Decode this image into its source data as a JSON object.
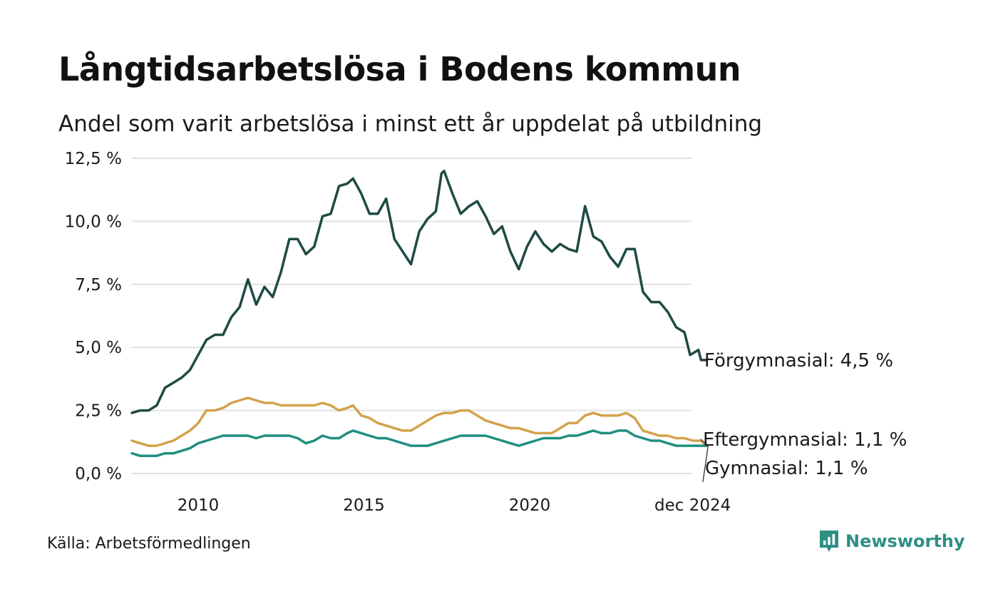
{
  "header": {
    "title": "Långtidsarbetslösa i Bodens kommun",
    "subtitle": "Andel som varit arbetslösa i minst ett år uppdelat på utbildning"
  },
  "footer": {
    "source": "Källa: Arbetsförmedlingen",
    "brand": "Newsworthy",
    "brand_icon": "bar-chart-pin-icon"
  },
  "colors": {
    "Förgymnasial": "#1f4a44",
    "Eftergymnasial": "#d4a24c",
    "Gymnasial": "#1f8f80",
    "grid": "#e2e2e2",
    "brand": "#2f8f84"
  },
  "chart_data": {
    "type": "line",
    "title": "Långtidsarbetslösa i Bodens kommun",
    "subtitle": "Andel som varit arbetslösa i minst ett år uppdelat på utbildning",
    "xlabel": "",
    "ylabel": "",
    "x_start": "2008-01",
    "x_end": "2024-12",
    "ylim": [
      0,
      12.5
    ],
    "y_ticks": [
      0,
      2.5,
      5,
      7.5,
      10,
      12.5
    ],
    "y_tick_labels": [
      "0,0 %",
      "2,5 %",
      "5,0 %",
      "7,5 %",
      "10,0 %",
      "12,5 %"
    ],
    "x_ticks": [
      2010,
      2015,
      2020,
      2024.9167
    ],
    "x_tick_labels": [
      "2010",
      "2015",
      "2020",
      "dec 2024"
    ],
    "grid": true,
    "series": [
      {
        "name": "Förgymnasial",
        "end_label": "Förgymnasial: 4,5 %",
        "points": [
          [
            2008.0,
            2.4
          ],
          [
            2008.25,
            2.5
          ],
          [
            2008.5,
            2.5
          ],
          [
            2008.75,
            2.7
          ],
          [
            2009.0,
            3.4
          ],
          [
            2009.25,
            3.6
          ],
          [
            2009.5,
            3.8
          ],
          [
            2009.75,
            4.1
          ],
          [
            2010.0,
            4.7
          ],
          [
            2010.25,
            5.3
          ],
          [
            2010.5,
            5.5
          ],
          [
            2010.75,
            5.5
          ],
          [
            2011.0,
            6.2
          ],
          [
            2011.25,
            6.6
          ],
          [
            2011.5,
            7.7
          ],
          [
            2011.75,
            6.7
          ],
          [
            2012.0,
            7.4
          ],
          [
            2012.25,
            7.0
          ],
          [
            2012.5,
            8.0
          ],
          [
            2012.75,
            9.3
          ],
          [
            2013.0,
            9.3
          ],
          [
            2013.25,
            8.7
          ],
          [
            2013.5,
            9.0
          ],
          [
            2013.75,
            10.2
          ],
          [
            2014.0,
            10.3
          ],
          [
            2014.25,
            11.4
          ],
          [
            2014.5,
            11.5
          ],
          [
            2014.67,
            11.7
          ],
          [
            2014.92,
            11.1
          ],
          [
            2015.17,
            10.3
          ],
          [
            2015.42,
            10.3
          ],
          [
            2015.67,
            10.9
          ],
          [
            2015.92,
            9.3
          ],
          [
            2016.17,
            8.8
          ],
          [
            2016.42,
            8.3
          ],
          [
            2016.67,
            9.6
          ],
          [
            2016.92,
            10.1
          ],
          [
            2017.17,
            10.4
          ],
          [
            2017.34,
            11.9
          ],
          [
            2017.42,
            12.0
          ],
          [
            2017.67,
            11.1
          ],
          [
            2017.92,
            10.3
          ],
          [
            2018.17,
            10.6
          ],
          [
            2018.42,
            10.8
          ],
          [
            2018.67,
            10.2
          ],
          [
            2018.92,
            9.5
          ],
          [
            2019.17,
            9.8
          ],
          [
            2019.42,
            8.8
          ],
          [
            2019.67,
            8.1
          ],
          [
            2019.92,
            9.0
          ],
          [
            2020.17,
            9.6
          ],
          [
            2020.42,
            9.1
          ],
          [
            2020.67,
            8.8
          ],
          [
            2020.92,
            9.1
          ],
          [
            2021.17,
            8.9
          ],
          [
            2021.42,
            8.8
          ],
          [
            2021.67,
            10.6
          ],
          [
            2021.92,
            9.4
          ],
          [
            2022.17,
            9.2
          ],
          [
            2022.42,
            8.6
          ],
          [
            2022.67,
            8.2
          ],
          [
            2022.92,
            8.9
          ],
          [
            2023.17,
            8.9
          ],
          [
            2023.42,
            7.2
          ],
          [
            2023.67,
            6.8
          ],
          [
            2023.92,
            6.8
          ],
          [
            2024.17,
            6.4
          ],
          [
            2024.42,
            5.8
          ],
          [
            2024.67,
            5.6
          ],
          [
            2024.84,
            4.7
          ],
          [
            2025.09,
            4.9
          ],
          [
            2025.17,
            4.5
          ],
          [
            2025.34,
            4.5
          ]
        ]
      },
      {
        "name": "Eftergymnasial",
        "end_label": "Eftergymnasial: 1,1 %",
        "points": [
          [
            2008.0,
            1.3
          ],
          [
            2008.25,
            1.2
          ],
          [
            2008.5,
            1.1
          ],
          [
            2008.75,
            1.1
          ],
          [
            2009.0,
            1.2
          ],
          [
            2009.25,
            1.3
          ],
          [
            2009.5,
            1.5
          ],
          [
            2009.75,
            1.7
          ],
          [
            2010.0,
            2.0
          ],
          [
            2010.25,
            2.5
          ],
          [
            2010.5,
            2.5
          ],
          [
            2010.75,
            2.6
          ],
          [
            2011.0,
            2.8
          ],
          [
            2011.25,
            2.9
          ],
          [
            2011.5,
            3.0
          ],
          [
            2011.75,
            2.9
          ],
          [
            2012.0,
            2.8
          ],
          [
            2012.25,
            2.8
          ],
          [
            2012.5,
            2.7
          ],
          [
            2012.75,
            2.7
          ],
          [
            2013.0,
            2.7
          ],
          [
            2013.25,
            2.7
          ],
          [
            2013.5,
            2.7
          ],
          [
            2013.75,
            2.8
          ],
          [
            2014.0,
            2.7
          ],
          [
            2014.25,
            2.5
          ],
          [
            2014.5,
            2.6
          ],
          [
            2014.67,
            2.7
          ],
          [
            2014.92,
            2.3
          ],
          [
            2015.17,
            2.2
          ],
          [
            2015.42,
            2.0
          ],
          [
            2015.67,
            1.9
          ],
          [
            2015.92,
            1.8
          ],
          [
            2016.17,
            1.7
          ],
          [
            2016.42,
            1.7
          ],
          [
            2016.67,
            1.9
          ],
          [
            2016.92,
            2.1
          ],
          [
            2017.17,
            2.3
          ],
          [
            2017.42,
            2.4
          ],
          [
            2017.67,
            2.4
          ],
          [
            2017.92,
            2.5
          ],
          [
            2018.17,
            2.5
          ],
          [
            2018.42,
            2.3
          ],
          [
            2018.67,
            2.1
          ],
          [
            2018.92,
            2.0
          ],
          [
            2019.17,
            1.9
          ],
          [
            2019.42,
            1.8
          ],
          [
            2019.67,
            1.8
          ],
          [
            2019.92,
            1.7
          ],
          [
            2020.17,
            1.6
          ],
          [
            2020.42,
            1.6
          ],
          [
            2020.67,
            1.6
          ],
          [
            2020.92,
            1.8
          ],
          [
            2021.17,
            2.0
          ],
          [
            2021.42,
            2.0
          ],
          [
            2021.67,
            2.3
          ],
          [
            2021.92,
            2.4
          ],
          [
            2022.17,
            2.3
          ],
          [
            2022.42,
            2.3
          ],
          [
            2022.67,
            2.3
          ],
          [
            2022.92,
            2.4
          ],
          [
            2023.17,
            2.2
          ],
          [
            2023.42,
            1.7
          ],
          [
            2023.67,
            1.6
          ],
          [
            2023.92,
            1.5
          ],
          [
            2024.17,
            1.5
          ],
          [
            2024.42,
            1.4
          ],
          [
            2024.67,
            1.4
          ],
          [
            2024.92,
            1.3
          ],
          [
            2025.17,
            1.3
          ],
          [
            2025.34,
            1.1
          ]
        ]
      },
      {
        "name": "Gymnasial",
        "end_label": "Gymnasial: 1,1 %",
        "points": [
          [
            2008.0,
            0.8
          ],
          [
            2008.25,
            0.7
          ],
          [
            2008.5,
            0.7
          ],
          [
            2008.75,
            0.7
          ],
          [
            2009.0,
            0.8
          ],
          [
            2009.25,
            0.8
          ],
          [
            2009.5,
            0.9
          ],
          [
            2009.75,
            1.0
          ],
          [
            2010.0,
            1.2
          ],
          [
            2010.25,
            1.3
          ],
          [
            2010.5,
            1.4
          ],
          [
            2010.75,
            1.5
          ],
          [
            2011.0,
            1.5
          ],
          [
            2011.25,
            1.5
          ],
          [
            2011.5,
            1.5
          ],
          [
            2011.75,
            1.4
          ],
          [
            2012.0,
            1.5
          ],
          [
            2012.25,
            1.5
          ],
          [
            2012.5,
            1.5
          ],
          [
            2012.75,
            1.5
          ],
          [
            2013.0,
            1.4
          ],
          [
            2013.25,
            1.2
          ],
          [
            2013.5,
            1.3
          ],
          [
            2013.75,
            1.5
          ],
          [
            2014.0,
            1.4
          ],
          [
            2014.25,
            1.4
          ],
          [
            2014.5,
            1.6
          ],
          [
            2014.67,
            1.7
          ],
          [
            2014.92,
            1.6
          ],
          [
            2015.17,
            1.5
          ],
          [
            2015.42,
            1.4
          ],
          [
            2015.67,
            1.4
          ],
          [
            2015.92,
            1.3
          ],
          [
            2016.17,
            1.2
          ],
          [
            2016.42,
            1.1
          ],
          [
            2016.67,
            1.1
          ],
          [
            2016.92,
            1.1
          ],
          [
            2017.17,
            1.2
          ],
          [
            2017.42,
            1.3
          ],
          [
            2017.67,
            1.4
          ],
          [
            2017.92,
            1.5
          ],
          [
            2018.17,
            1.5
          ],
          [
            2018.42,
            1.5
          ],
          [
            2018.67,
            1.5
          ],
          [
            2018.92,
            1.4
          ],
          [
            2019.17,
            1.3
          ],
          [
            2019.42,
            1.2
          ],
          [
            2019.67,
            1.1
          ],
          [
            2019.92,
            1.2
          ],
          [
            2020.17,
            1.3
          ],
          [
            2020.42,
            1.4
          ],
          [
            2020.67,
            1.4
          ],
          [
            2020.92,
            1.4
          ],
          [
            2021.17,
            1.5
          ],
          [
            2021.42,
            1.5
          ],
          [
            2021.67,
            1.6
          ],
          [
            2021.92,
            1.7
          ],
          [
            2022.17,
            1.6
          ],
          [
            2022.42,
            1.6
          ],
          [
            2022.67,
            1.7
          ],
          [
            2022.92,
            1.7
          ],
          [
            2023.17,
            1.5
          ],
          [
            2023.42,
            1.4
          ],
          [
            2023.67,
            1.3
          ],
          [
            2023.92,
            1.3
          ],
          [
            2024.17,
            1.2
          ],
          [
            2024.42,
            1.1
          ],
          [
            2024.67,
            1.1
          ],
          [
            2024.92,
            1.1
          ],
          [
            2025.17,
            1.1
          ],
          [
            2025.34,
            1.1
          ]
        ]
      }
    ]
  }
}
